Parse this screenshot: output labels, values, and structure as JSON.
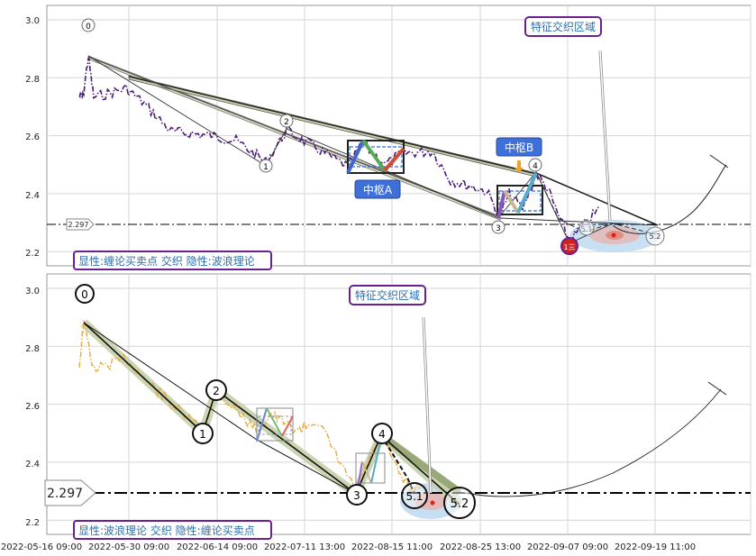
{
  "chart_data": [
    {
      "type": "line",
      "panel": "top",
      "caption": "显性:缠论买卖点 交织 隐性:波浪理论",
      "ylim": [
        2.17,
        3.05
      ],
      "yticks": [
        "3.0",
        "2.8",
        "2.6",
        "2.4",
        "2.2"
      ],
      "hline_label": "2.297",
      "callout_label": "特征交织区域",
      "zones": [
        {
          "label": "中枢A",
          "y_low": 2.48,
          "y_high": 2.59
        },
        {
          "label": "中枢B",
          "y_low": 2.32,
          "y_high": 2.43
        }
      ],
      "wave_points": [
        {
          "label": "0",
          "y": 2.88
        },
        {
          "label": "1",
          "y": 2.53
        },
        {
          "label": "2",
          "y": 2.63
        },
        {
          "label": "3",
          "y": 2.31
        },
        {
          "label": "4",
          "y": 2.47
        },
        {
          "label": "5.1",
          "y": 2.28
        },
        {
          "label": "5.2",
          "y": 2.25
        }
      ],
      "signal_marker": "1三",
      "series_color": "#4b1a7a"
    },
    {
      "type": "line",
      "panel": "bottom",
      "caption": "显性:波浪理论 交织 隐性:缠论买卖点",
      "ylim": [
        2.17,
        3.05
      ],
      "yticks": [
        "3.0",
        "2.8",
        "2.6",
        "2.4",
        "2.2"
      ],
      "hline_label": "2.297",
      "callout_label": "特征交织区域",
      "wave_points": [
        {
          "label": "0",
          "y": 2.88
        },
        {
          "label": "1",
          "y": 2.53
        },
        {
          "label": "2",
          "y": 2.63
        },
        {
          "label": "3",
          "y": 2.31
        },
        {
          "label": "4",
          "y": 2.47
        },
        {
          "label": "5.1",
          "y": 2.28
        },
        {
          "label": "5.2",
          "y": 2.25
        }
      ],
      "series_color": "#e8a93a"
    }
  ],
  "x_axis": {
    "ticks": [
      "2022-05-16 09:00",
      "2022-05-30 09:00",
      "2022-06-14 09:00",
      "2022-07-11 13:00",
      "2022-08-15 11:00",
      "2022-08-25 13:00",
      "2022-09-07 09:00",
      "2022-09-19 11:00"
    ]
  }
}
